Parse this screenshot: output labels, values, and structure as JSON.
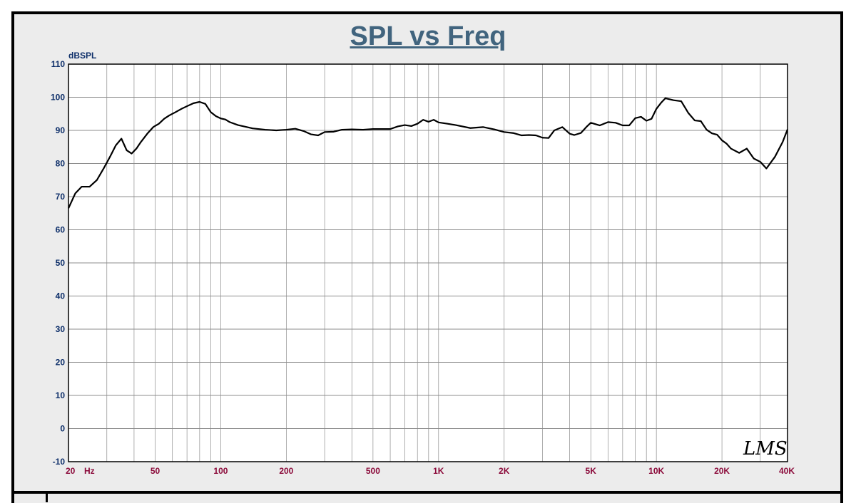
{
  "colors": {
    "title": "#41647e",
    "y_tick": "#0e2f6a",
    "x_tick": "#8b0a3a",
    "curve": "#000000",
    "grid": "#8c8c8c",
    "plot_bg": "#ffffff",
    "frame_bg": "#ececec"
  },
  "chart_data": {
    "type": "line",
    "title": "SPL vs Freq",
    "ylabel": "dBSPL",
    "xlabel": "",
    "x_scale": "log",
    "xlim": [
      20,
      40000
    ],
    "ylim": [
      -10,
      110
    ],
    "grid": true,
    "yticks": [
      "110",
      "100",
      "90",
      "80",
      "70",
      "60",
      "50",
      "40",
      "30",
      "20",
      "10",
      "0",
      "-10"
    ],
    "xticks": [
      {
        "value": 20,
        "label": "20"
      },
      {
        "value": 50,
        "label": "50"
      },
      {
        "value": 100,
        "label": "100"
      },
      {
        "value": 200,
        "label": "200"
      },
      {
        "value": 500,
        "label": "500"
      },
      {
        "value": 1000,
        "label": "1K"
      },
      {
        "value": 2000,
        "label": "2K"
      },
      {
        "value": 5000,
        "label": "5K"
      },
      {
        "value": 10000,
        "label": "10K"
      },
      {
        "value": 20000,
        "label": "20K"
      },
      {
        "value": 40000,
        "label": "40K"
      }
    ],
    "x_unit_label": "Hz",
    "series": [
      {
        "x": [
          20,
          21.5,
          23,
          25,
          27,
          29,
          31,
          33,
          35,
          37,
          39,
          41,
          43,
          46,
          49,
          52,
          55,
          58,
          62,
          66,
          70,
          75,
          80,
          85,
          90,
          95,
          100,
          105,
          110,
          120,
          130,
          140,
          160,
          180,
          200,
          220,
          240,
          260,
          280,
          300,
          330,
          360,
          400,
          450,
          500,
          550,
          600,
          650,
          700,
          750,
          800,
          850,
          900,
          950,
          1000,
          1100,
          1200,
          1400,
          1600,
          1800,
          2000,
          2200,
          2400,
          2600,
          2800,
          3000,
          3200,
          3400,
          3700,
          4000,
          4200,
          4500,
          4800,
          5000,
          5500,
          6000,
          6500,
          7000,
          7500,
          8000,
          8500,
          9000,
          9500,
          10000,
          10500,
          11000,
          12000,
          13000,
          14000,
          15000,
          16000,
          17000,
          18000,
          19000,
          20000,
          21000,
          22000,
          24000,
          26000,
          28000,
          30000,
          32000,
          35000,
          38000,
          40000
        ],
        "y": [
          66.5,
          71,
          73,
          73,
          75,
          78.5,
          82,
          85.5,
          87.5,
          84,
          83,
          84.5,
          86.5,
          89,
          91,
          92,
          93.5,
          94.5,
          95.5,
          96.5,
          97.3,
          98.2,
          98.6,
          98,
          95.5,
          94.3,
          93.6,
          93.3,
          92.5,
          91.6,
          91.1,
          90.6,
          90.2,
          90,
          90.2,
          90.5,
          89.8,
          88.8,
          88.5,
          89.5,
          89.6,
          90.2,
          90.3,
          90.2,
          90.4,
          90.4,
          90.4,
          91.2,
          91.6,
          91.3,
          92,
          93.2,
          92.6,
          93.2,
          92.4,
          92,
          91.6,
          90.7,
          91,
          90.3,
          89.5,
          89.2,
          88.5,
          88.6,
          88.5,
          87.8,
          87.7,
          90,
          91,
          89,
          88.6,
          89.2,
          91.2,
          92.3,
          91.5,
          92.5,
          92.3,
          91.5,
          91.5,
          93.7,
          94.1,
          92.9,
          93.5,
          96.5,
          98.3,
          99.7,
          99.1,
          98.8,
          95.3,
          93,
          92.8,
          90.2,
          89.1,
          88.7,
          87,
          86,
          84.5,
          83.2,
          84.5,
          81.5,
          80.5,
          78.5,
          82,
          86.5,
          90.3
        ]
      }
    ]
  },
  "logo_text": "LMS"
}
